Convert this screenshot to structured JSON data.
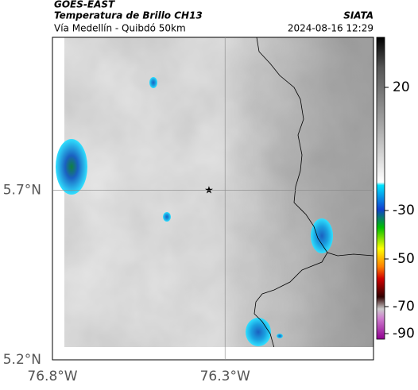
{
  "header": {
    "source": "GOES-EAST",
    "title": "Temperatura de Brillo CH13",
    "org": "SIATA",
    "route": "Vía Medellín - Quibdó 50km",
    "datetime": "2024-08-16 12:29"
  },
  "map": {
    "xlim": [
      -76.8,
      -75.87
    ],
    "ylim": [
      5.2,
      6.15
    ],
    "xticks": [
      {
        "value": -76.8,
        "label": "76.8°W"
      },
      {
        "value": -76.3,
        "label": "76.3°W"
      }
    ],
    "yticks": [
      {
        "value": 5.2,
        "label": "5.2°N"
      },
      {
        "value": 5.7,
        "label": "5.7°N"
      }
    ]
  },
  "colorbar": {
    "ticks": [
      20,
      -30,
      -50,
      -70,
      -90
    ]
  }
}
